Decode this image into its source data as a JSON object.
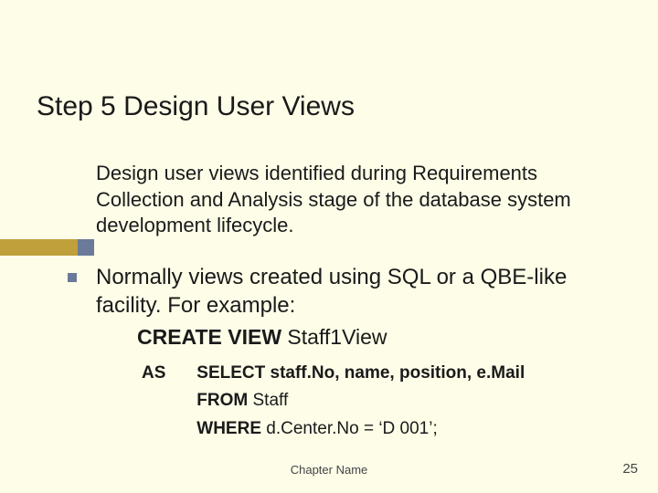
{
  "title": "Step 5  Design User Views",
  "intro": "Design user views identified during Requirements Collection and Analysis stage of the database system development lifecycle.",
  "body1": "Normally views created using SQL or a QBE-like facility. For example:",
  "create_kw": "CREATE VIEW ",
  "create_name": "Staff1View",
  "as_kw": "AS",
  "select_kw": "SELECT ",
  "select_cols": "staff.No, name, position, e.Mail",
  "from_kw": "FROM ",
  "from_table": "Staff",
  "where_kw": "WHERE ",
  "where_clause": "d.Center.No = ‘D 001’;",
  "footer": "Chapter Name",
  "pagenum": "25",
  "colors": {
    "background": "#fdfde8",
    "accent_gold": "#bfa03a",
    "accent_blue": "#6b7a99",
    "text": "#1a1a1a"
  }
}
